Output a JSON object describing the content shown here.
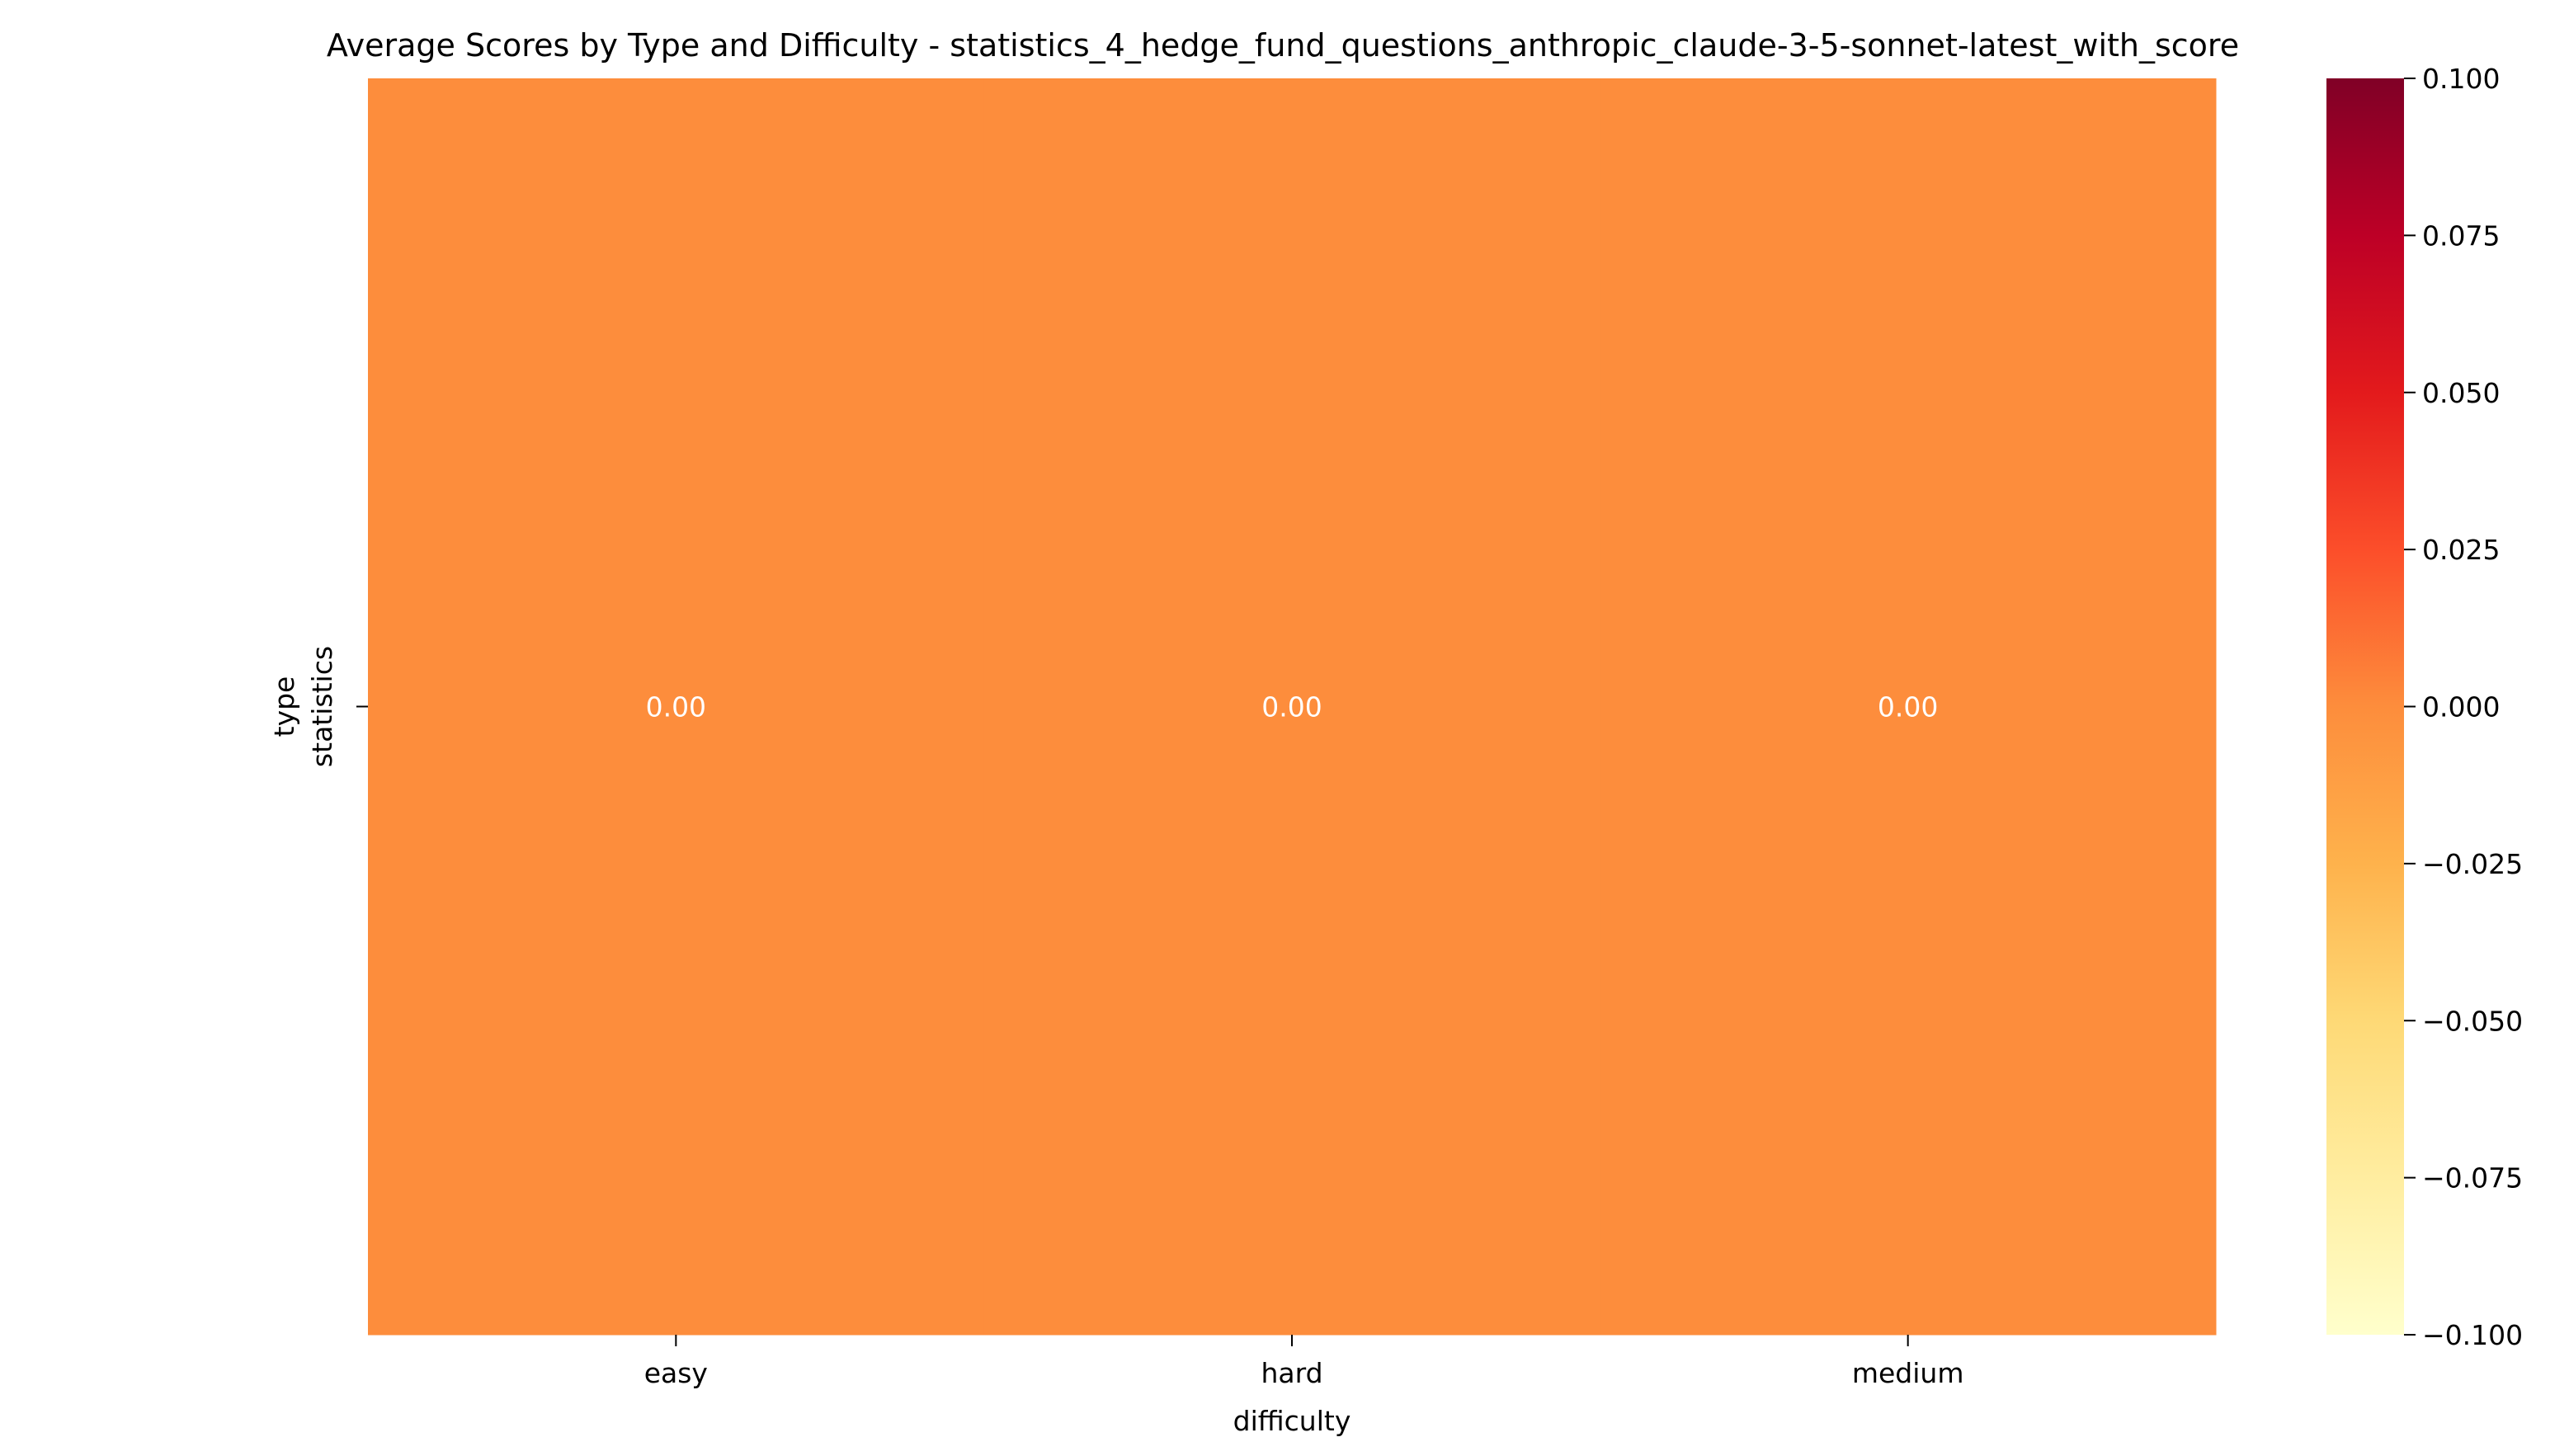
{
  "chart_data": {
    "type": "heatmap",
    "title": "Average Scores by Type and Difficulty - statistics_4_hedge_fund_questions_anthropic_claude-3-5-sonnet-latest_with_score",
    "xlabel": "difficulty",
    "ylabel": "type",
    "x_categories": [
      "easy",
      "hard",
      "medium"
    ],
    "y_categories": [
      "statistics"
    ],
    "values": [
      [
        0.0,
        0.0,
        0.0
      ]
    ],
    "cell_labels": [
      [
        "0.00",
        "0.00",
        "0.00"
      ]
    ],
    "colormap": "YlOrRd",
    "colorbar": {
      "range": [
        -0.1,
        0.1
      ],
      "ticks": [
        0.1,
        0.075,
        0.05,
        0.025,
        0.0,
        -0.025,
        -0.05,
        -0.075,
        -0.1
      ],
      "tick_labels": [
        "0.100",
        "0.075",
        "0.050",
        "0.025",
        "0.000",
        "−0.025",
        "−0.050",
        "−0.075",
        "−0.100"
      ]
    },
    "cell_color": "#fd8d3c",
    "annotation_color": "#ffffff",
    "grid": false,
    "legend": "right"
  }
}
